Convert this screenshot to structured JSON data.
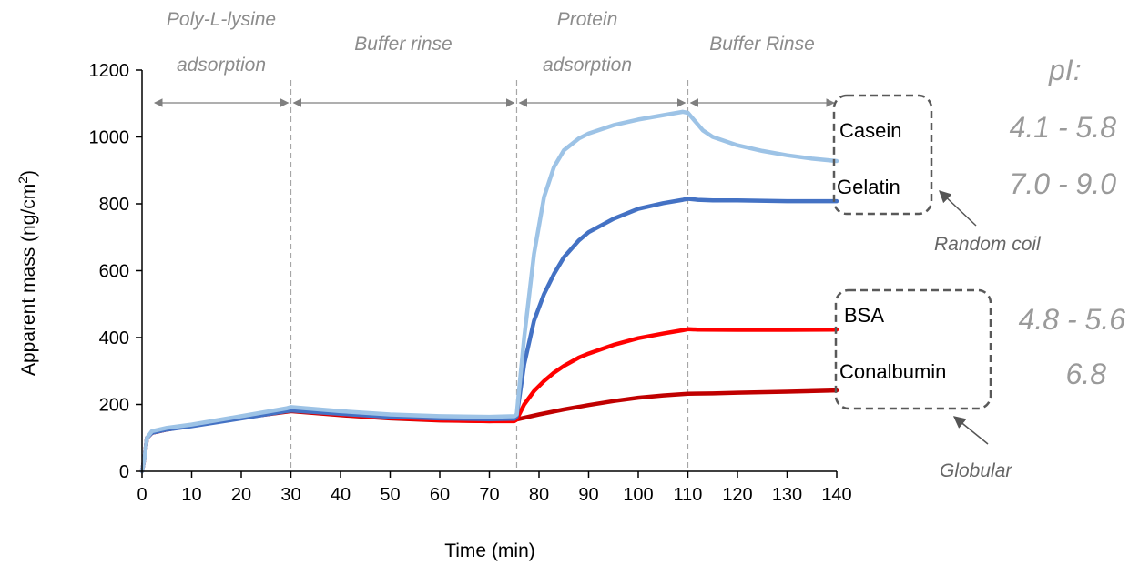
{
  "chart_data": {
    "type": "line",
    "xlabel": "Time (min)",
    "ylabel": "Apparent mass (ng/cm",
    "ylabel_superscript": "2",
    "ylabel_close": ")",
    "xlim": [
      0,
      140
    ],
    "ylim": [
      0,
      1200
    ],
    "xticks": [
      0,
      10,
      20,
      30,
      40,
      50,
      60,
      70,
      80,
      90,
      100,
      110,
      120,
      130,
      140
    ],
    "yticks": [
      0,
      200,
      400,
      600,
      800,
      1000,
      1200
    ],
    "phase_boundaries": [
      30,
      75.5,
      110
    ],
    "phases": [
      {
        "lines": [
          "Poly-L-lysine",
          "adsorption"
        ],
        "start": 2,
        "end": 30
      },
      {
        "lines": [
          "Buffer rinse"
        ],
        "start": 30,
        "end": 75.5
      },
      {
        "lines": [
          "Protein",
          "adsorption"
        ],
        "start": 75.5,
        "end": 110
      },
      {
        "lines": [
          "Buffer Rinse"
        ],
        "start": 110,
        "end": 140
      }
    ],
    "series": [
      {
        "name": "Casein",
        "color": "#9dc3e6",
        "points": [
          [
            0,
            0
          ],
          [
            0.5,
            40
          ],
          [
            1,
            100
          ],
          [
            2,
            120
          ],
          [
            5,
            130
          ],
          [
            10,
            140
          ],
          [
            20,
            165
          ],
          [
            29,
            188
          ],
          [
            30,
            192
          ],
          [
            40,
            180
          ],
          [
            50,
            170
          ],
          [
            60,
            165
          ],
          [
            70,
            163
          ],
          [
            75,
            165
          ],
          [
            75.5,
            170
          ],
          [
            77,
            400
          ],
          [
            79,
            650
          ],
          [
            81,
            820
          ],
          [
            83,
            910
          ],
          [
            85,
            960
          ],
          [
            88,
            995
          ],
          [
            90,
            1010
          ],
          [
            95,
            1035
          ],
          [
            100,
            1052
          ],
          [
            105,
            1065
          ],
          [
            109,
            1075
          ],
          [
            110,
            1072
          ],
          [
            111,
            1055
          ],
          [
            113,
            1020
          ],
          [
            115,
            1000
          ],
          [
            120,
            975
          ],
          [
            125,
            958
          ],
          [
            130,
            945
          ],
          [
            135,
            935
          ],
          [
            140,
            928
          ]
        ]
      },
      {
        "name": "Gelatin",
        "color": "#4472c4",
        "points": [
          [
            0,
            0
          ],
          [
            0.5,
            40
          ],
          [
            1,
            100
          ],
          [
            2,
            115
          ],
          [
            5,
            125
          ],
          [
            10,
            135
          ],
          [
            20,
            158
          ],
          [
            29,
            180
          ],
          [
            30,
            182
          ],
          [
            40,
            172
          ],
          [
            50,
            163
          ],
          [
            60,
            158
          ],
          [
            70,
            156
          ],
          [
            75,
            157
          ],
          [
            75.5,
            165
          ],
          [
            77,
            320
          ],
          [
            79,
            450
          ],
          [
            81,
            530
          ],
          [
            83,
            590
          ],
          [
            85,
            640
          ],
          [
            88,
            690
          ],
          [
            90,
            715
          ],
          [
            95,
            755
          ],
          [
            100,
            785
          ],
          [
            105,
            802
          ],
          [
            109,
            812
          ],
          [
            110,
            815
          ],
          [
            112,
            812
          ],
          [
            115,
            810
          ],
          [
            120,
            810
          ],
          [
            130,
            808
          ],
          [
            140,
            808
          ]
        ]
      },
      {
        "name": "BSA",
        "color": "#ff0000",
        "points": [
          [
            0,
            0
          ],
          [
            0.5,
            40
          ],
          [
            1,
            100
          ],
          [
            2,
            115
          ],
          [
            5,
            125
          ],
          [
            10,
            138
          ],
          [
            20,
            160
          ],
          [
            29,
            180
          ],
          [
            30,
            182
          ],
          [
            40,
            170
          ],
          [
            50,
            160
          ],
          [
            60,
            153
          ],
          [
            70,
            150
          ],
          [
            75,
            150
          ],
          [
            75.5,
            155
          ],
          [
            77,
            200
          ],
          [
            79,
            240
          ],
          [
            81,
            270
          ],
          [
            83,
            295
          ],
          [
            85,
            315
          ],
          [
            88,
            340
          ],
          [
            90,
            352
          ],
          [
            95,
            378
          ],
          [
            100,
            398
          ],
          [
            105,
            412
          ],
          [
            109,
            422
          ],
          [
            110,
            425
          ],
          [
            112,
            424
          ],
          [
            120,
            423
          ],
          [
            130,
            423
          ],
          [
            140,
            424
          ]
        ]
      },
      {
        "name": "Conalbumin",
        "color": "#c00000",
        "points": [
          [
            0,
            0
          ],
          [
            0.5,
            40
          ],
          [
            1,
            100
          ],
          [
            2,
            115
          ],
          [
            5,
            125
          ],
          [
            10,
            138
          ],
          [
            20,
            160
          ],
          [
            29,
            178
          ],
          [
            30,
            180
          ],
          [
            40,
            168
          ],
          [
            50,
            158
          ],
          [
            60,
            152
          ],
          [
            70,
            150
          ],
          [
            75,
            152
          ],
          [
            75.5,
            155
          ],
          [
            80,
            170
          ],
          [
            85,
            185
          ],
          [
            90,
            198
          ],
          [
            95,
            210
          ],
          [
            100,
            220
          ],
          [
            105,
            227
          ],
          [
            110,
            232
          ],
          [
            115,
            233
          ],
          [
            120,
            235
          ],
          [
            130,
            238
          ],
          [
            140,
            242
          ]
        ]
      }
    ],
    "groups": [
      {
        "class_label": "Random coil",
        "members": [
          {
            "protein": "Casein",
            "pI": "4.1 - 5.8"
          },
          {
            "protein": "Gelatin",
            "pI": "7.0 - 9.0"
          }
        ]
      },
      {
        "class_label": "Globular",
        "members": [
          {
            "protein": "BSA",
            "pI": "4.8 - 5.6"
          },
          {
            "protein": "Conalbumin",
            "pI": "6.8"
          }
        ]
      }
    ],
    "pI_header": "pI:"
  }
}
